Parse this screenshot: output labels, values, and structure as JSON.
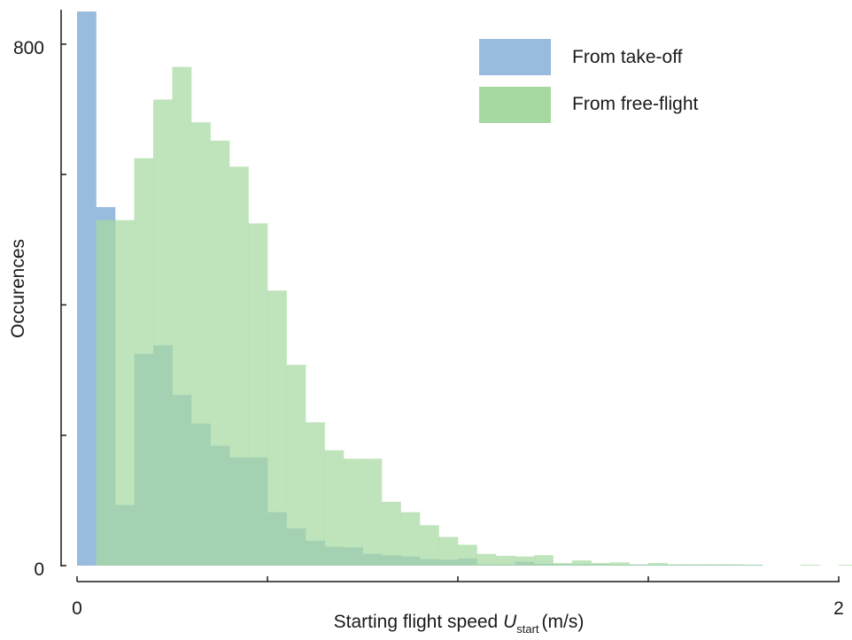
{
  "chart_data": {
    "type": "histogram",
    "bin_width": 0.05,
    "xlabel_prefix": "Starting flight speed ",
    "xlabel_symbol": "U",
    "xlabel_subscript": "start",
    "xlabel_suffix": "(m/s)",
    "ylabel": "Occurences",
    "xlim": [
      0,
      2
    ],
    "ylim": [
      0,
      850
    ],
    "x_ticks": [
      0,
      0.5,
      1.0,
      1.5,
      2
    ],
    "x_tick_labels": [
      "0",
      "",
      "",
      "",
      "2"
    ],
    "y_ticks": [
      0,
      200,
      400,
      600,
      800
    ],
    "y_tick_labels": [
      "0",
      "",
      "",
      "",
      "800"
    ],
    "grid": false,
    "legend_position": "top-right",
    "series": [
      {
        "name": "From take-off",
        "color": "#99bbdd",
        "x_start": 0,
        "values": [
          850,
          550,
          93,
          325,
          338,
          262,
          218,
          184,
          166,
          166,
          82,
          57,
          38,
          29,
          28,
          18,
          16,
          14,
          10,
          9,
          11,
          2,
          2,
          6,
          3,
          2,
          2,
          2,
          1,
          1,
          1,
          1,
          1,
          1,
          1,
          1,
          0,
          0,
          0,
          0
        ]
      },
      {
        "name": "From free-flight",
        "color": "#a6d9a1",
        "x_start": 0.05,
        "values": [
          530,
          530,
          625,
          715,
          765,
          680,
          652,
          612,
          525,
          422,
          308,
          220,
          177,
          164,
          164,
          98,
          82,
          62,
          44,
          32,
          18,
          15,
          14,
          16,
          4,
          8,
          4,
          5,
          2,
          4,
          2,
          2,
          2,
          2,
          1,
          0,
          0,
          1,
          0,
          1
        ]
      }
    ]
  }
}
